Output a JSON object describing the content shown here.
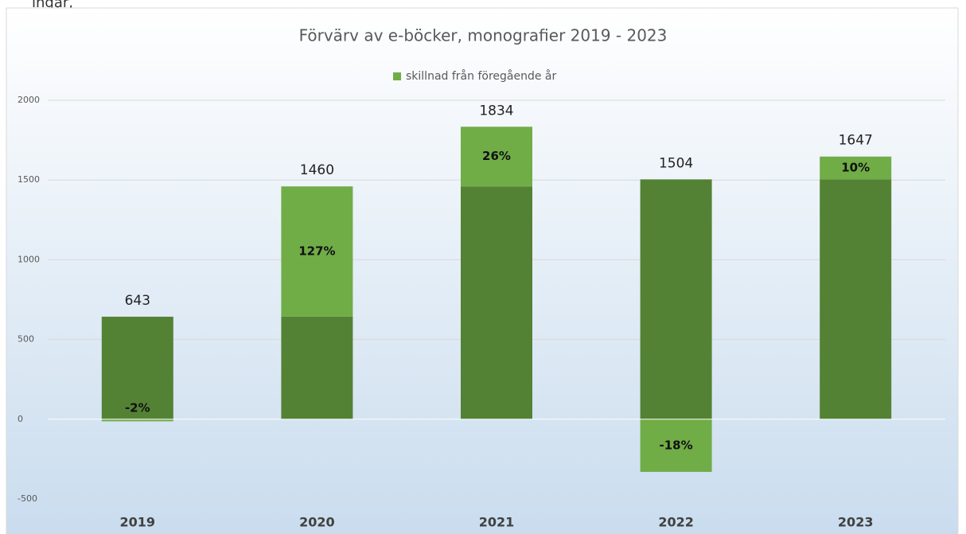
{
  "chart_data": {
    "type": "stacked_bar",
    "header_fragment": "ingår,",
    "title": "Förvärv av e-böcker, monografier 2019 - 2023",
    "categories": [
      "2019",
      "2020",
      "2021",
      "2022",
      "2023"
    ],
    "series": [
      {
        "color": "#548235",
        "values": [
          643,
          643,
          1460,
          1504,
          1504
        ]
      },
      {
        "name": "skillnad från föregående år",
        "color": "#70ad47",
        "values": [
          -13,
          817,
          374,
          -330,
          143
        ],
        "value_labels": [
          "-2%",
          "127%",
          "26%",
          "-18%",
          "10%"
        ]
      }
    ],
    "totals": [
      643,
      1460,
      1834,
      1504,
      1647
    ],
    "ylim": [
      -500,
      2000
    ],
    "yticks": [
      -500,
      0,
      500,
      1000,
      1500,
      2000
    ],
    "grid": true,
    "legend": "top"
  }
}
